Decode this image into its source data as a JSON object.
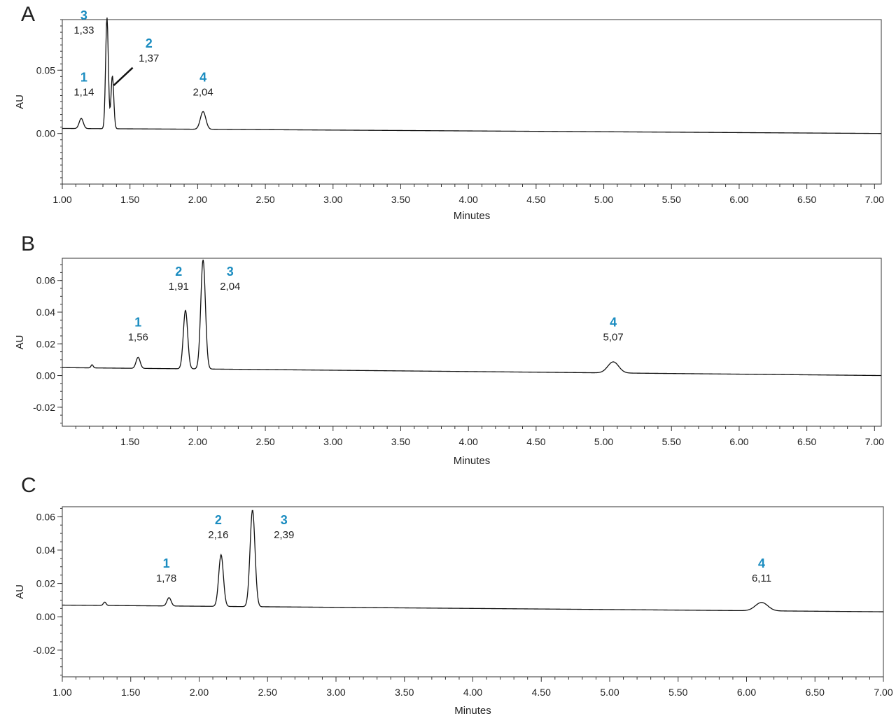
{
  "chart_data": [
    {
      "panel_label": "A",
      "type": "line",
      "xlabel": "Minutes",
      "ylabel": "AU",
      "xlim": [
        1.0,
        7.05
      ],
      "ylim": [
        -0.04,
        0.09
      ],
      "x_ticks": [
        "1.00",
        "1.50",
        "2.00",
        "2.50",
        "3.00",
        "3.50",
        "4.00",
        "4.50",
        "5.00",
        "5.50",
        "6.00",
        "6.50",
        "7.00"
      ],
      "x_tick_values": [
        1.0,
        1.5,
        2.0,
        2.5,
        3.0,
        3.5,
        4.0,
        4.5,
        5.0,
        5.5,
        6.0,
        6.5,
        7.0
      ],
      "y_ticks": [
        "0.05",
        "0.00"
      ],
      "y_tick_values": [
        0.05,
        0.0
      ],
      "baseline": {
        "start": 0.004,
        "end": 0.0
      },
      "peaks": [
        {
          "number": "1",
          "rt_label": "1,14",
          "rt": 1.14,
          "height": 0.008,
          "width": 0.015
        },
        {
          "number": "3",
          "rt_label": "1,33",
          "rt": 1.33,
          "height": 0.088,
          "width": 0.01
        },
        {
          "number": "2",
          "rt_label": "1,37",
          "rt": 1.37,
          "height": 0.042,
          "width": 0.01
        },
        {
          "number": "4",
          "rt_label": "2,04",
          "rt": 2.04,
          "height": 0.014,
          "width": 0.02
        }
      ],
      "peak_labels": [
        {
          "number": "3",
          "rt_label": "1,33",
          "x": 1.16,
          "y": 0.08
        },
        {
          "number": "2",
          "rt_label": "1,37",
          "x": 1.64,
          "y": 0.058,
          "leader": [
            [
              1.52,
              0.052
            ],
            [
              1.38,
              0.038
            ]
          ]
        },
        {
          "number": "1",
          "rt_label": "1,14",
          "x": 1.16,
          "y": 0.031
        },
        {
          "number": "4",
          "rt_label": "2,04",
          "x": 2.04,
          "y": 0.031
        }
      ]
    },
    {
      "panel_label": "B",
      "type": "line",
      "xlabel": "Minutes",
      "ylabel": "AU",
      "xlim": [
        1.0,
        7.05
      ],
      "ylim": [
        -0.032,
        0.074
      ],
      "x_ticks": [
        "1.50",
        "2.00",
        "2.50",
        "3.00",
        "3.50",
        "4.00",
        "4.50",
        "5.00",
        "5.50",
        "6.00",
        "6.50",
        "7.00"
      ],
      "x_tick_values": [
        1.5,
        2.0,
        2.5,
        3.0,
        3.5,
        4.0,
        4.5,
        5.0,
        5.5,
        6.0,
        6.5,
        7.0
      ],
      "y_ticks": [
        "0.06",
        "0.04",
        "0.02",
        "0.00",
        "-0.02"
      ],
      "y_tick_values": [
        0.06,
        0.04,
        0.02,
        0.0,
        -0.02
      ],
      "baseline": {
        "start": 0.005,
        "end": 0.0
      },
      "peaks": [
        {
          "number": "",
          "rt_label": "",
          "rt": 1.22,
          "height": 0.002,
          "width": 0.008
        },
        {
          "number": "1",
          "rt_label": "1,56",
          "rt": 1.56,
          "height": 0.007,
          "width": 0.015
        },
        {
          "number": "2",
          "rt_label": "1,91",
          "rt": 1.91,
          "height": 0.037,
          "width": 0.016
        },
        {
          "number": "3",
          "rt_label": "2,04",
          "rt": 2.04,
          "height": 0.069,
          "width": 0.017
        },
        {
          "number": "4",
          "rt_label": "5,07",
          "rt": 5.07,
          "height": 0.007,
          "width": 0.04
        }
      ],
      "peak_labels": [
        {
          "number": "1",
          "rt_label": "1,56",
          "x": 1.56,
          "y": 0.023
        },
        {
          "number": "2",
          "rt_label": "1,91",
          "x": 1.86,
          "y": 0.055
        },
        {
          "number": "3",
          "rt_label": "2,04",
          "x": 2.24,
          "y": 0.055
        },
        {
          "number": "4",
          "rt_label": "5,07",
          "x": 5.07,
          "y": 0.023
        }
      ]
    },
    {
      "panel_label": "C",
      "type": "line",
      "xlabel": "Minutes",
      "ylabel": "AU",
      "xlim": [
        1.0,
        7.0
      ],
      "ylim": [
        -0.036,
        0.066
      ],
      "x_ticks": [
        "1.00",
        "1.50",
        "2.00",
        "2.50",
        "3.00",
        "3.50",
        "4.00",
        "4.50",
        "5.00",
        "5.50",
        "6.00",
        "6.50",
        "7.00"
      ],
      "x_tick_values": [
        1.0,
        1.5,
        2.0,
        2.5,
        3.0,
        3.5,
        4.0,
        4.5,
        5.0,
        5.5,
        6.0,
        6.5,
        7.0
      ],
      "y_ticks": [
        "0.06",
        "0.04",
        "0.02",
        "0.00",
        "-0.02"
      ],
      "y_tick_values": [
        0.06,
        0.04,
        0.02,
        0.0,
        -0.02
      ],
      "baseline": {
        "start": 0.007,
        "end": 0.003
      },
      "peaks": [
        {
          "number": "",
          "rt_label": "",
          "rt": 1.31,
          "height": 0.002,
          "width": 0.01
        },
        {
          "number": "1",
          "rt_label": "1,78",
          "rt": 1.78,
          "height": 0.005,
          "width": 0.015
        },
        {
          "number": "2",
          "rt_label": "2,16",
          "rt": 2.16,
          "height": 0.031,
          "width": 0.017
        },
        {
          "number": "3",
          "rt_label": "2,39",
          "rt": 2.39,
          "height": 0.058,
          "width": 0.018
        },
        {
          "number": "4",
          "rt_label": "6,11",
          "rt": 6.11,
          "height": 0.005,
          "width": 0.045
        }
      ],
      "peak_labels": [
        {
          "number": "1",
          "rt_label": "1,78",
          "x": 1.76,
          "y": 0.022
        },
        {
          "number": "2",
          "rt_label": "2,16",
          "x": 2.14,
          "y": 0.048
        },
        {
          "number": "3",
          "rt_label": "2,39",
          "x": 2.62,
          "y": 0.048
        },
        {
          "number": "4",
          "rt_label": "6,11",
          "x": 6.11,
          "y": 0.022
        }
      ]
    }
  ]
}
